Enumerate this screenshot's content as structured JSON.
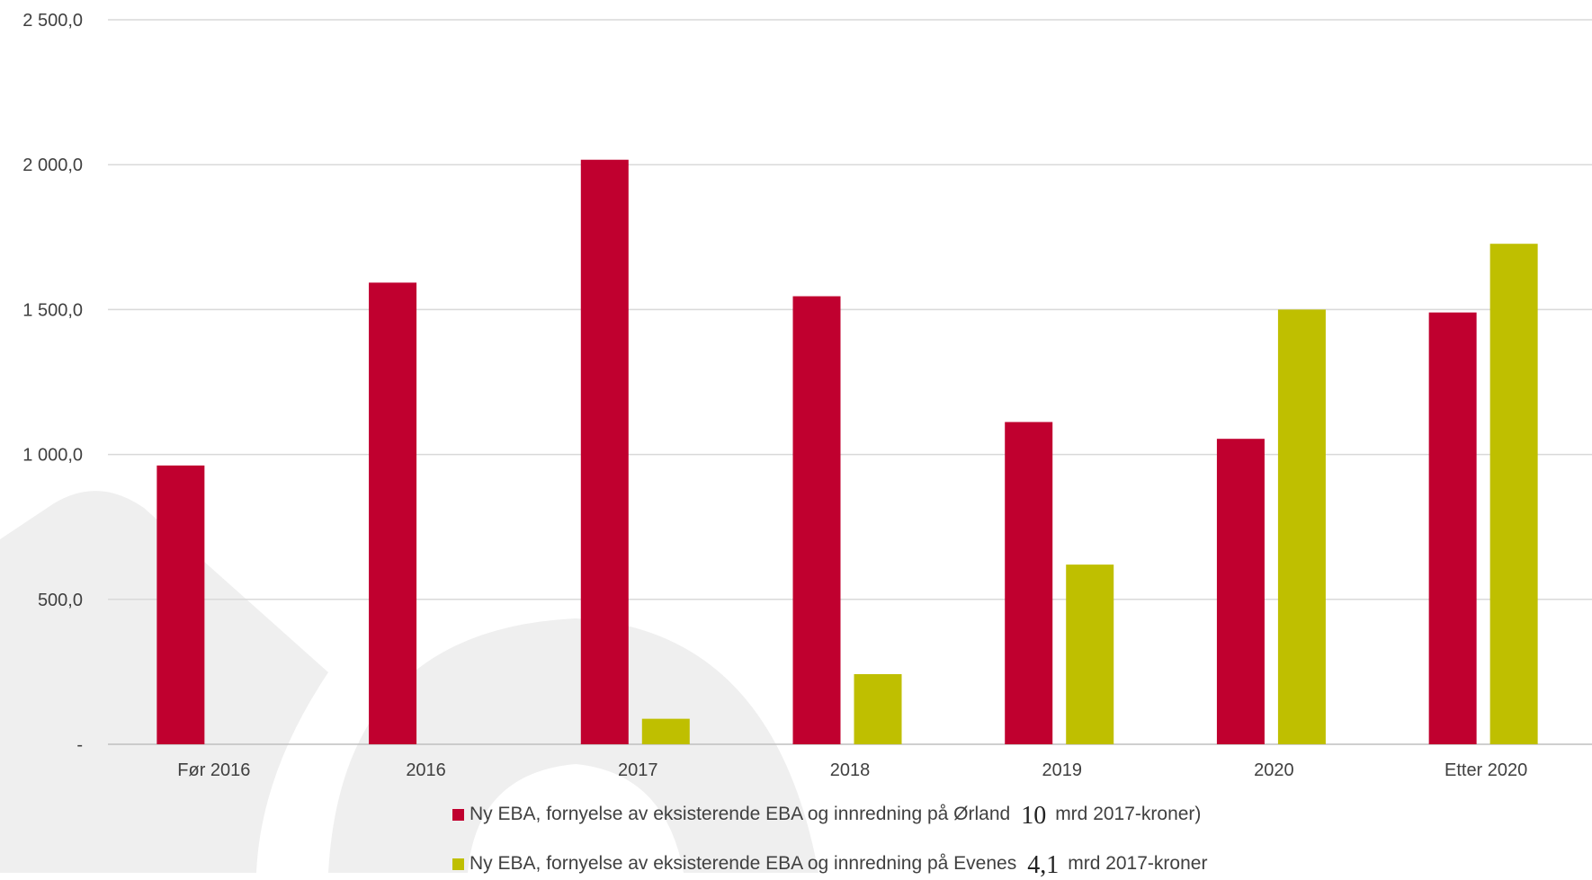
{
  "chart_data": {
    "type": "bar",
    "categories": [
      "Før 2016",
      "2016",
      "2017",
      "2018",
      "2019",
      "2020",
      "Etter 2020"
    ],
    "series": [
      {
        "name": "Ørland",
        "color": "#c0002f",
        "values": [
          962,
          1593,
          2017,
          1546,
          1112,
          1054,
          1490
        ]
      },
      {
        "name": "Evenes",
        "color": "#bfbf00",
        "values": [
          0,
          0,
          88,
          242,
          620,
          1500,
          1727
        ]
      }
    ],
    "yticks": [
      "-",
      "500,0",
      "1 000,0",
      "1 500,0",
      "2 000,0",
      "2 500,0"
    ],
    "ylim": [
      0,
      2500
    ],
    "grid": true,
    "legend_position": "bottom"
  },
  "legend": [
    {
      "text": "Ny EBA, fornyelse av eksisterende EBA og innredning på Ørland",
      "amount": "10",
      "unit": "mrd 2017-kroner)",
      "color": "#c0002f"
    },
    {
      "text": "Ny EBA, fornyelse av eksisterende EBA og innredning på Evenes",
      "amount": "4,1",
      "unit": "mrd 2017-kroner",
      "color": "#bfbf00"
    }
  ]
}
